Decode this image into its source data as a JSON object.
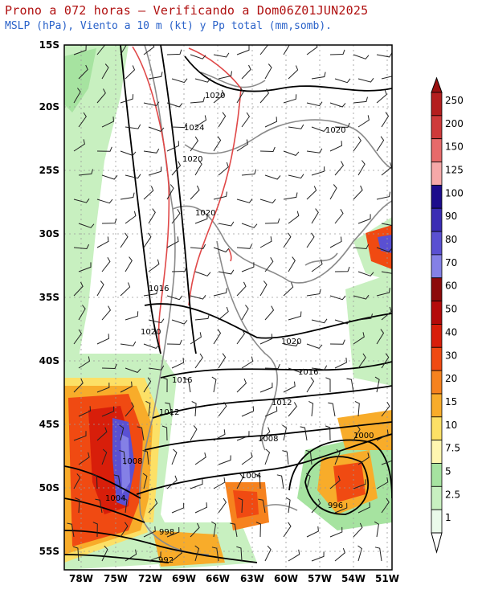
{
  "header": {
    "title": "Prono a 072 horas – Verificando a Dom06Z01JUN2025",
    "subtitle": "MSLP (hPa), Viento a 10 m (kt) y Pp total (mm,somb)."
  },
  "map": {
    "lat_labels": [
      "15S",
      "20S",
      "25S",
      "30S",
      "35S",
      "40S",
      "45S",
      "50S",
      "55S"
    ],
    "lon_labels": [
      "78W",
      "75W",
      "72W",
      "69W",
      "66W",
      "63W",
      "60W",
      "57W",
      "54W",
      "51W"
    ],
    "isobar_labels": [
      "1020",
      "1024",
      "1020",
      "1020",
      "1020",
      "1016",
      "1020",
      "1020",
      "1016",
      "1016",
      "1012",
      "1012",
      "1008",
      "1008",
      "1004",
      "1004",
      "1000",
      "996",
      "998",
      "992"
    ]
  },
  "colorbar": {
    "labels": [
      "250",
      "200",
      "150",
      "125",
      "100",
      "90",
      "80",
      "70",
      "60",
      "50",
      "40",
      "30",
      "20",
      "15",
      "10",
      "7.5",
      "5",
      "2.5",
      "1"
    ],
    "colors": [
      "#b41e1e",
      "#cf3a3a",
      "#e76a6a",
      "#f5a8a8",
      "#1c0c8c",
      "#3a2cb4",
      "#5a50d2",
      "#8480e6",
      "#8c0a0a",
      "#b40a0a",
      "#d81e0a",
      "#f04a12",
      "#f6821e",
      "#f8ac2a",
      "#fce066",
      "#fff6b0",
      "#a6e3a0",
      "#c8f0c0",
      "#eafaea"
    ],
    "top_color": "#9a1010",
    "bottom_color": "#ffffff"
  }
}
